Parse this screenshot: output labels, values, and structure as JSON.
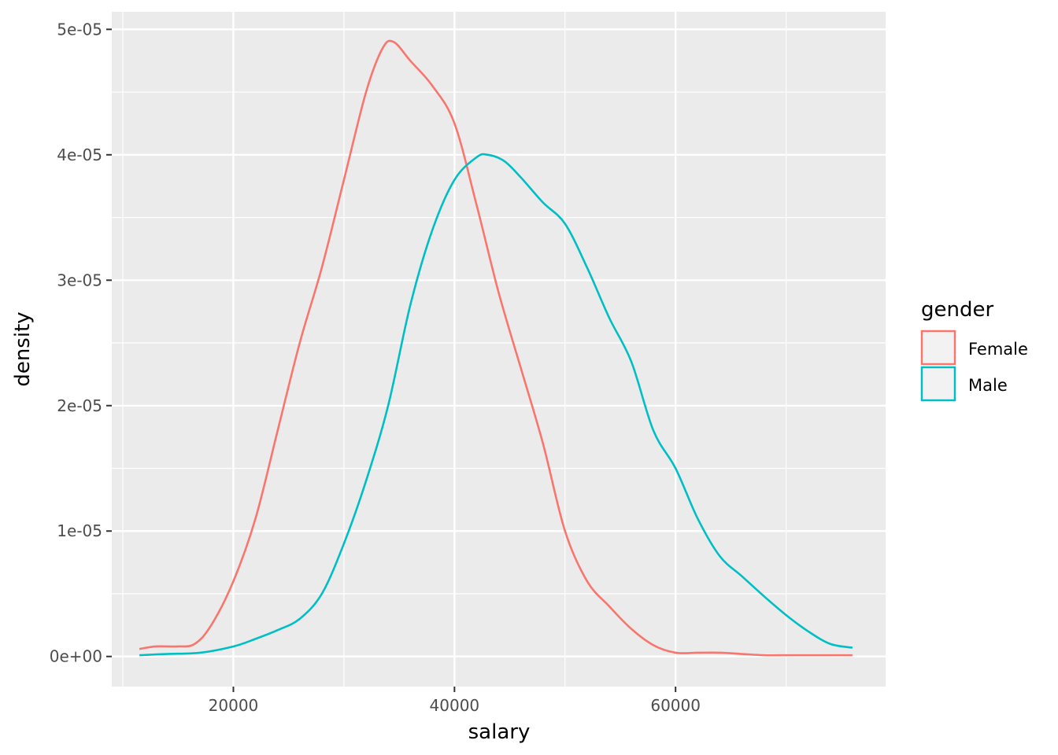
{
  "chart_data": {
    "type": "line",
    "title": "",
    "xlabel": "salary",
    "ylabel": "density",
    "xlim": [
      9000,
      79000
    ],
    "ylim": [
      -2.4e-06,
      5.14e-05
    ],
    "x_ticks": [
      20000,
      40000,
      60000
    ],
    "x_tick_labels": [
      "20000",
      "40000",
      "60000"
    ],
    "y_ticks": [
      0,
      1e-05,
      2e-05,
      3e-05,
      4e-05,
      5e-05
    ],
    "y_tick_labels": [
      "0e+00",
      "1e-05",
      "2e-05",
      "3e-05",
      "4e-05",
      "5e-05"
    ],
    "grid": true,
    "legend": {
      "title": "gender",
      "position": "right"
    },
    "series": [
      {
        "name": "Female",
        "color": "#F8766D",
        "points": [
          [
            11500,
            6e-07
          ],
          [
            13000,
            8e-07
          ],
          [
            15000,
            8e-07
          ],
          [
            16500,
            1e-06
          ],
          [
            18000,
            2.5e-06
          ],
          [
            20000,
            6e-06
          ],
          [
            22000,
            1.1e-05
          ],
          [
            24000,
            1.8e-05
          ],
          [
            26000,
            2.5e-05
          ],
          [
            28000,
            3.1e-05
          ],
          [
            30000,
            3.8e-05
          ],
          [
            32000,
            4.5e-05
          ],
          [
            33500,
            4.85e-05
          ],
          [
            34500,
            4.9e-05
          ],
          [
            36000,
            4.75e-05
          ],
          [
            38000,
            4.55e-05
          ],
          [
            40000,
            4.25e-05
          ],
          [
            42000,
            3.6e-05
          ],
          [
            44000,
            2.9e-05
          ],
          [
            46000,
            2.3e-05
          ],
          [
            48000,
            1.7e-05
          ],
          [
            50000,
            1e-05
          ],
          [
            52000,
            6e-06
          ],
          [
            54000,
            4e-06
          ],
          [
            56000,
            2.2e-06
          ],
          [
            58000,
            9e-07
          ],
          [
            60000,
            3e-07
          ],
          [
            62000,
            3e-07
          ],
          [
            64000,
            3e-07
          ],
          [
            66000,
            2e-07
          ],
          [
            68000,
            1e-07
          ],
          [
            70000,
            1e-07
          ],
          [
            72000,
            1e-07
          ],
          [
            76000,
            1e-07
          ]
        ]
      },
      {
        "name": "Male",
        "color": "#00BFC4",
        "points": [
          [
            11500,
            1e-07
          ],
          [
            14000,
            2e-07
          ],
          [
            17000,
            3e-07
          ],
          [
            20000,
            8e-07
          ],
          [
            22000,
            1.4e-06
          ],
          [
            24000,
            2.1e-06
          ],
          [
            26000,
            3e-06
          ],
          [
            28000,
            5e-06
          ],
          [
            30000,
            9e-06
          ],
          [
            32000,
            1.4e-05
          ],
          [
            34000,
            2e-05
          ],
          [
            36000,
            2.8e-05
          ],
          [
            38000,
            3.4e-05
          ],
          [
            40000,
            3.8e-05
          ],
          [
            42000,
            3.98e-05
          ],
          [
            43000,
            4e-05
          ],
          [
            44500,
            3.95e-05
          ],
          [
            46000,
            3.82e-05
          ],
          [
            48000,
            3.62e-05
          ],
          [
            50000,
            3.45e-05
          ],
          [
            52000,
            3.1e-05
          ],
          [
            54000,
            2.7e-05
          ],
          [
            56000,
            2.35e-05
          ],
          [
            58000,
            1.8e-05
          ],
          [
            60000,
            1.5e-05
          ],
          [
            62000,
            1.1e-05
          ],
          [
            64000,
            8e-06
          ],
          [
            66000,
            6.4e-06
          ],
          [
            68000,
            4.8e-06
          ],
          [
            70000,
            3.3e-06
          ],
          [
            72000,
            2e-06
          ],
          [
            74000,
            1e-06
          ],
          [
            76000,
            7e-07
          ]
        ]
      }
    ]
  }
}
